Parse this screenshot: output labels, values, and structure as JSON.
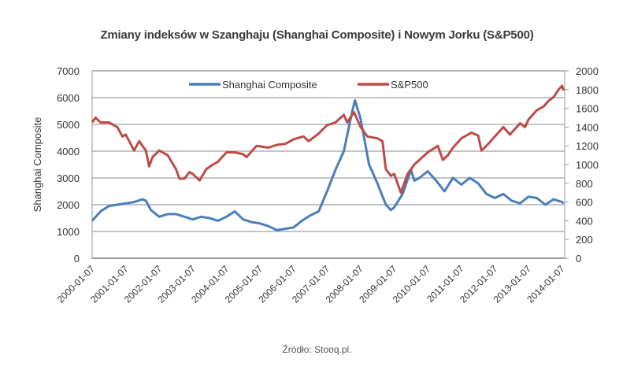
{
  "chart_data": {
    "type": "line",
    "title": "Zmiany indeksów w Szanghaju (Shanghai  Composite) i Nowym Jorku (S&P500)",
    "source": "Źródło: Stooq.pl.",
    "ylabel": "Shanghai Composite",
    "ylabel_right": "",
    "ylim": [
      0,
      7000
    ],
    "ylim_right": [
      0,
      2000
    ],
    "yticks": [
      "0",
      "1000",
      "2000",
      "3000",
      "4000",
      "5000",
      "6000",
      "7000"
    ],
    "yticks_right": [
      "0",
      "200",
      "400",
      "600",
      "800",
      "1000",
      "1200",
      "1400",
      "1600",
      "1800",
      "2000"
    ],
    "xticks": [
      "2000-01-07",
      "2001-01-07",
      "2002-01-07",
      "2003-01-07",
      "2004-01-07",
      "2005-01-07",
      "2006-01-07",
      "2007-01-07",
      "2008-01-07",
      "2009-01-07",
      "2010-01-07",
      "2011-01-07",
      "2012-01-07",
      "2013-01-07",
      "2014-01-07"
    ],
    "grid": true,
    "legend": "top-center",
    "series": [
      {
        "name": "Shanghai Composite",
        "axis": "left",
        "color": "#4a7ebb",
        "x": [
          2000.0,
          2000.25,
          2000.5,
          2000.75,
          2001.0,
          2001.25,
          2001.5,
          2001.6,
          2001.75,
          2002.0,
          2002.25,
          2002.5,
          2002.75,
          2003.0,
          2003.25,
          2003.5,
          2003.75,
          2004.0,
          2004.25,
          2004.5,
          2004.75,
          2005.0,
          2005.25,
          2005.5,
          2005.75,
          2006.0,
          2006.25,
          2006.5,
          2006.75,
          2007.0,
          2007.25,
          2007.5,
          2007.75,
          2007.83,
          2008.0,
          2008.25,
          2008.5,
          2008.75,
          2008.9,
          2009.0,
          2009.25,
          2009.5,
          2009.6,
          2009.75,
          2010.0,
          2010.25,
          2010.5,
          2010.75,
          2011.0,
          2011.25,
          2011.5,
          2011.75,
          2012.0,
          2012.25,
          2012.5,
          2012.75,
          2013.0,
          2013.25,
          2013.5,
          2013.75,
          2014.0,
          2014.05
        ],
        "y": [
          1400,
          1750,
          1950,
          2000,
          2050,
          2100,
          2200,
          2150,
          1800,
          1550,
          1650,
          1650,
          1550,
          1450,
          1550,
          1500,
          1400,
          1550,
          1750,
          1450,
          1350,
          1300,
          1200,
          1050,
          1100,
          1150,
          1400,
          1600,
          1750,
          2500,
          3300,
          4000,
          5500,
          5900,
          5200,
          3500,
          2800,
          2000,
          1800,
          1900,
          2400,
          3300,
          2900,
          3000,
          3250,
          2900,
          2500,
          3000,
          2750,
          3000,
          2800,
          2400,
          2250,
          2400,
          2150,
          2050,
          2300,
          2250,
          2000,
          2200,
          2100,
          2050
        ]
      },
      {
        "name": "S&P500",
        "axis": "right",
        "color": "#be4b48",
        "x": [
          2000.0,
          2000.1,
          2000.25,
          2000.5,
          2000.75,
          2000.9,
          2001.0,
          2001.25,
          2001.4,
          2001.6,
          2001.7,
          2001.8,
          2002.0,
          2002.25,
          2002.5,
          2002.6,
          2002.75,
          2002.9,
          2003.0,
          2003.2,
          2003.4,
          2003.6,
          2003.75,
          2004.0,
          2004.25,
          2004.5,
          2004.6,
          2004.9,
          2005.25,
          2005.5,
          2005.75,
          2006.0,
          2006.3,
          2006.45,
          2006.75,
          2007.0,
          2007.25,
          2007.5,
          2007.6,
          2007.8,
          2008.0,
          2008.2,
          2008.5,
          2008.65,
          2008.75,
          2008.9,
          2009.0,
          2009.2,
          2009.4,
          2009.6,
          2009.75,
          2010.0,
          2010.3,
          2010.45,
          2010.6,
          2010.75,
          2011.0,
          2011.3,
          2011.5,
          2011.6,
          2011.75,
          2012.0,
          2012.25,
          2012.45,
          2012.75,
          2012.9,
          2013.0,
          2013.25,
          2013.45,
          2013.6,
          2013.75,
          2013.9,
          2014.0,
          2014.05
        ],
        "y": [
          1450,
          1500,
          1450,
          1450,
          1400,
          1300,
          1320,
          1150,
          1250,
          1150,
          980,
          1080,
          1150,
          1100,
          950,
          850,
          850,
          920,
          900,
          830,
          950,
          1000,
          1030,
          1130,
          1130,
          1110,
          1080,
          1200,
          1180,
          1210,
          1220,
          1270,
          1300,
          1250,
          1330,
          1420,
          1450,
          1530,
          1450,
          1560,
          1400,
          1300,
          1280,
          1250,
          950,
          880,
          900,
          700,
          900,
          1000,
          1050,
          1130,
          1200,
          1050,
          1100,
          1180,
          1280,
          1340,
          1310,
          1150,
          1200,
          1300,
          1400,
          1320,
          1440,
          1400,
          1480,
          1580,
          1620,
          1680,
          1720,
          1800,
          1840,
          1790
        ]
      }
    ]
  }
}
